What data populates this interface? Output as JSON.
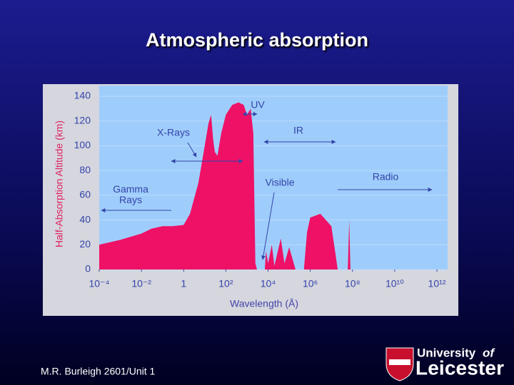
{
  "slide": {
    "title": "Atmospheric absorption",
    "footer": "M.R. Burleigh 2601/Unit 1",
    "logo": {
      "line1": "University",
      "line2": "of",
      "line3": "Leicester"
    }
  },
  "chart_data": {
    "type": "area",
    "x_label": "Wavelength (Å)",
    "y_label": "Half-Absorption Altitude (km)",
    "xscale": "log",
    "grid": true,
    "color": "#ee1166",
    "xlim": [
      0.0001,
      1000000000000
    ],
    "ylim": [
      0,
      140
    ],
    "xticks": [
      {
        "value": 0.0001,
        "label": "10⁻⁴"
      },
      {
        "value": 0.01,
        "label": "10⁻²"
      },
      1,
      {
        "value": 100,
        "label": "10²"
      },
      {
        "value": 10000,
        "label": "10⁴"
      },
      {
        "value": 1000000,
        "label": "10⁶"
      },
      {
        "value": 100000000,
        "label": "10⁸"
      },
      {
        "value": 10000000000,
        "label": "10¹⁰"
      },
      {
        "value": 1000000000000,
        "label": "10¹²"
      }
    ],
    "yticks": [
      0,
      20,
      40,
      60,
      80,
      100,
      120,
      140
    ],
    "x": [
      0.0001,
      0.001,
      0.01,
      0.03,
      0.1,
      0.3,
      1,
      2,
      5,
      10,
      15,
      20,
      25,
      30,
      40,
      60,
      100,
      200,
      400,
      700,
      1000,
      1500,
      2000,
      2500,
      3000,
      4000,
      7000,
      8000,
      10000,
      15000,
      20000,
      40000,
      60000,
      100000,
      200000,
      500000,
      700000,
      1000000,
      3000000,
      10000000,
      20000000,
      60000000,
      70000000,
      80000000,
      1000000000000
    ],
    "values": [
      20,
      24,
      29,
      33,
      35,
      35,
      36,
      45,
      70,
      100,
      118,
      125,
      105,
      95,
      92,
      110,
      125,
      133,
      135,
      133,
      125,
      130,
      110,
      5,
      0,
      0,
      0,
      15,
      5,
      20,
      3,
      25,
      5,
      18,
      0,
      0,
      30,
      42,
      45,
      35,
      0,
      0,
      40,
      0,
      0
    ],
    "annotations": [
      "UV",
      "X-Rays",
      "IR",
      "Visible",
      "Gamma Rays",
      "Radio"
    ]
  }
}
